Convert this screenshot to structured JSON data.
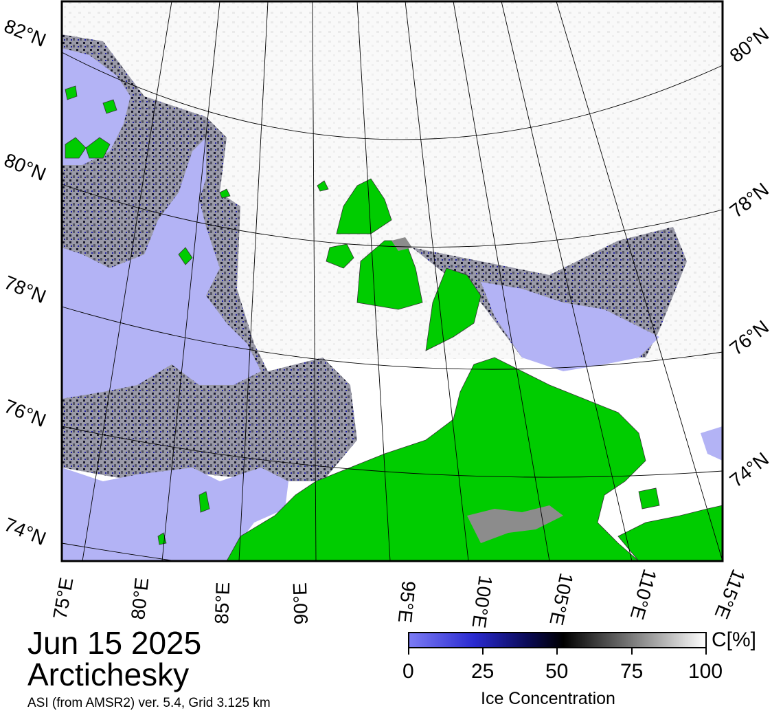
{
  "map": {
    "date": "Jun 15 2025",
    "region": "Arctichesky",
    "source": "ASI (from AMSR2) ver. 5.4,  Grid 3.125 km",
    "latitude_labels_left": [
      "82°N",
      "80°N",
      "78°N",
      "76°N",
      "74°N"
    ],
    "latitude_labels_right": [
      "80°N",
      "78°N",
      "76°N",
      "74°N"
    ],
    "longitude_labels": [
      "75°E",
      "80°E",
      "85°E",
      "90°E",
      "95°E",
      "100°E",
      "105°E",
      "110°E",
      "115°E"
    ]
  },
  "colorbar": {
    "title": "Ice Concentration",
    "unit": "C[%]",
    "ticks": [
      "0",
      "25",
      "50",
      "75",
      "100"
    ],
    "range": [
      0,
      100
    ],
    "colors": {
      "open_water": "#b3b3f5",
      "low": "#4848e0",
      "mid": "#000033",
      "high": "#9a9a9a",
      "full": "#ffffff",
      "land": "#00cc00",
      "land_ice": "#8c8c8c"
    }
  }
}
